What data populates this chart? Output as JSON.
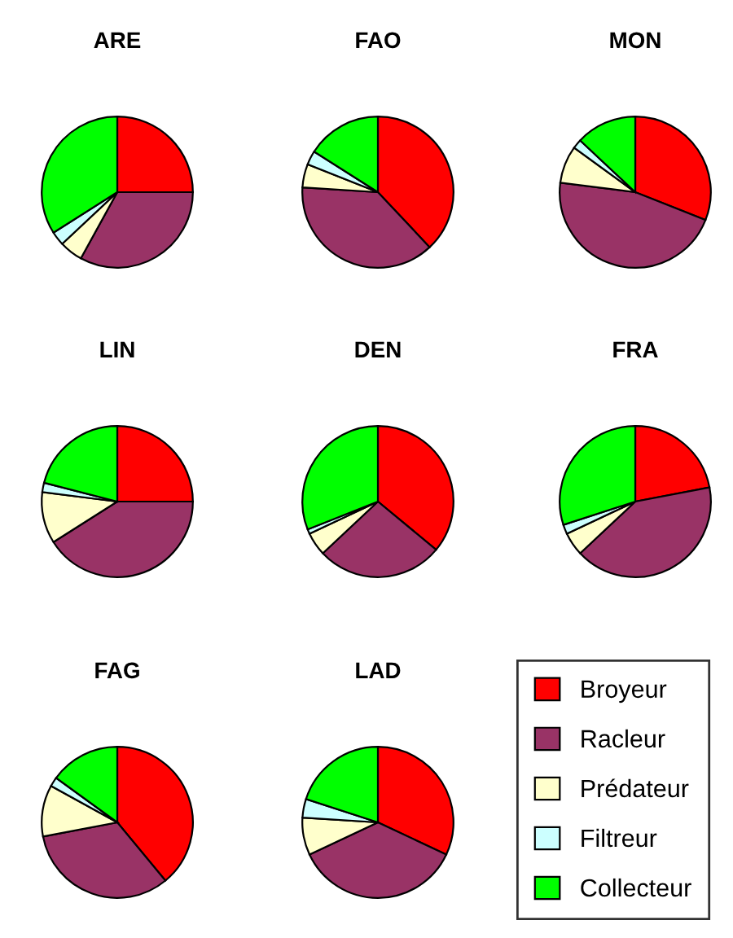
{
  "chart_data": [
    {
      "type": "pie",
      "title": "ARE",
      "categories": [
        "Broyeur",
        "Racleur",
        "Prédateur",
        "Filtreur",
        "Collecteur"
      ],
      "values": [
        25,
        33,
        5,
        3,
        34
      ],
      "colors": [
        "#ff0000",
        "#993366",
        "#ffffcc",
        "#ccffff",
        "#00ff00"
      ],
      "legend": "bottom right"
    },
    {
      "type": "pie",
      "title": "FAO",
      "categories": [
        null,
        null,
        null,
        null,
        null
      ],
      "values": [
        38,
        38,
        5,
        3,
        16
      ],
      "colors": [
        "#ff0000",
        "#993366",
        "#ffffcc",
        "#ccffff",
        "#00ff00"
      ]
    },
    {
      "type": "pie",
      "title": "MON",
      "categories": [
        null,
        null,
        null,
        null,
        null
      ],
      "values": [
        31,
        46,
        8,
        2,
        13
      ],
      "colors": [
        "#ff0000",
        "#993366",
        "#ffffcc",
        "#ccffff",
        "#00ff00"
      ]
    },
    {
      "type": "pie",
      "title": "LIN",
      "categories": [
        null,
        null,
        null,
        null,
        null
      ],
      "values": [
        25,
        41,
        11,
        2,
        21
      ],
      "colors": [
        "#ff0000",
        "#993366",
        "#ffffcc",
        "#ccffff",
        "#00ff00"
      ]
    },
    {
      "type": "pie",
      "title": "DEN",
      "categories": [
        null,
        null,
        null,
        null,
        null
      ],
      "values": [
        36,
        27,
        5,
        1,
        31
      ],
      "colors": [
        "#ff0000",
        "#993366",
        "#ffffcc",
        "#ccffff",
        "#00ff00"
      ]
    },
    {
      "type": "pie",
      "title": "FRA",
      "categories": [
        null,
        null,
        null,
        null,
        null
      ],
      "values": [
        22,
        41,
        5,
        2,
        30
      ],
      "colors": [
        "#ff0000",
        "#993366",
        "#ffffcc",
        "#ccffff",
        "#00ff00"
      ]
    },
    {
      "type": "pie",
      "title": "FAG",
      "categories": [
        null,
        null,
        null,
        null,
        null
      ],
      "values": [
        39,
        33,
        11,
        2,
        15
      ],
      "colors": [
        "#ff0000",
        "#993366",
        "#ffffcc",
        "#ccffff",
        "#00ff00"
      ]
    },
    {
      "type": "pie",
      "title": "LAD",
      "categories": [
        null,
        null,
        null,
        null,
        null
      ],
      "values": [
        32,
        36,
        8,
        4,
        20
      ],
      "colors": [
        "#ff0000",
        "#993366",
        "#ffffcc",
        "#ccffff",
        "#00ff00"
      ]
    }
  ]
}
